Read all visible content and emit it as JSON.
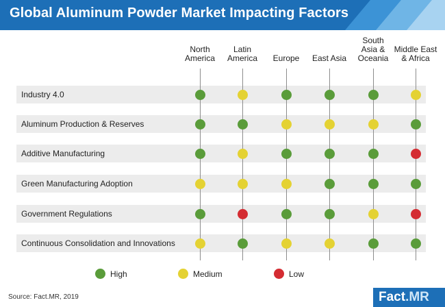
{
  "title": "Global Aluminum Powder Market Impacting Factors",
  "source": "Source: Fact.MR, 2019",
  "logo": {
    "brand": "Fact",
    "suffix": ".MR"
  },
  "colors": {
    "header": "#1d6fb7",
    "High": "#5a9c3a",
    "Medium": "#e4d233",
    "Low": "#d42c32",
    "row_band": "#ececec"
  },
  "chart_data": {
    "type": "table",
    "columns": [
      "North\nAmerica",
      "Latin\nAmerica",
      "Europe",
      "East Asia",
      "South\nAsia &\nOceania",
      "Middle East\n& Africa"
    ],
    "rows": [
      {
        "factor": "Industry 4.0",
        "values": [
          "High",
          "Medium",
          "High",
          "High",
          "High",
          "Medium"
        ]
      },
      {
        "factor": "Aluminum Production & Reserves",
        "values": [
          "High",
          "High",
          "Medium",
          "Medium",
          "Medium",
          "High"
        ]
      },
      {
        "factor": "Additive Manufacturing",
        "values": [
          "High",
          "Medium",
          "High",
          "High",
          "High",
          "Low"
        ]
      },
      {
        "factor": "Green Manufacturing Adoption",
        "values": [
          "Medium",
          "Medium",
          "Medium",
          "High",
          "High",
          "High"
        ]
      },
      {
        "factor": "Government Regulations",
        "values": [
          "High",
          "Low",
          "High",
          "High",
          "Medium",
          "Low"
        ]
      },
      {
        "factor": "Continuous Consolidation and Innovations",
        "values": [
          "Medium",
          "High",
          "Medium",
          "Medium",
          "High",
          "High"
        ]
      }
    ],
    "legend": [
      {
        "level": "High",
        "label": "High"
      },
      {
        "level": "Medium",
        "label": "Medium"
      },
      {
        "level": "Low",
        "label": "Low"
      }
    ]
  }
}
